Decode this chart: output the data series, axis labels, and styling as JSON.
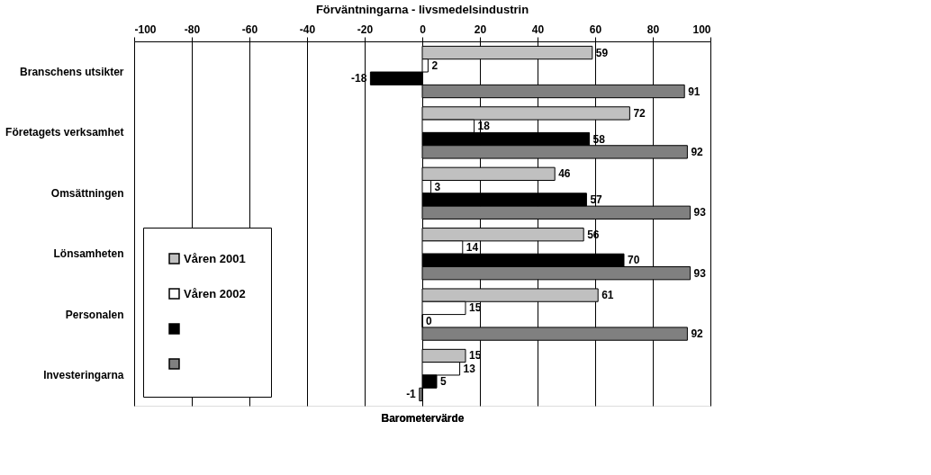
{
  "chart_data": {
    "type": "bar",
    "orientation": "horizontal",
    "title": "Förväntningarna - livsmedelsindustrin",
    "xlabel": "Barometervärde",
    "categories": [
      "Branschens utsikter",
      "Företagets verksamhet",
      "Omsättningen",
      "Lönsamheten",
      "Personalen",
      "Investeringarna"
    ],
    "series": [
      {
        "name": "Våren 2001",
        "color": "#c0c0c0",
        "values": [
          59,
          72,
          46,
          56,
          61,
          15
        ]
      },
      {
        "name": "Våren 2002",
        "color": "#ffffff",
        "values": [
          2,
          18,
          3,
          14,
          15,
          13
        ]
      },
      {
        "color": "#000000",
        "values": [
          -18,
          58,
          57,
          70,
          0,
          5
        ]
      },
      {
        "color": "#808080",
        "values": [
          91,
          92,
          93,
          93,
          92,
          -1
        ]
      }
    ],
    "xlim": [
      -100,
      100
    ],
    "xticks": [
      -100,
      -80,
      -60,
      -40,
      -20,
      0,
      20,
      40,
      60,
      80,
      100
    ],
    "grid": "x",
    "legend": "bottom left",
    "data_labels": true
  }
}
